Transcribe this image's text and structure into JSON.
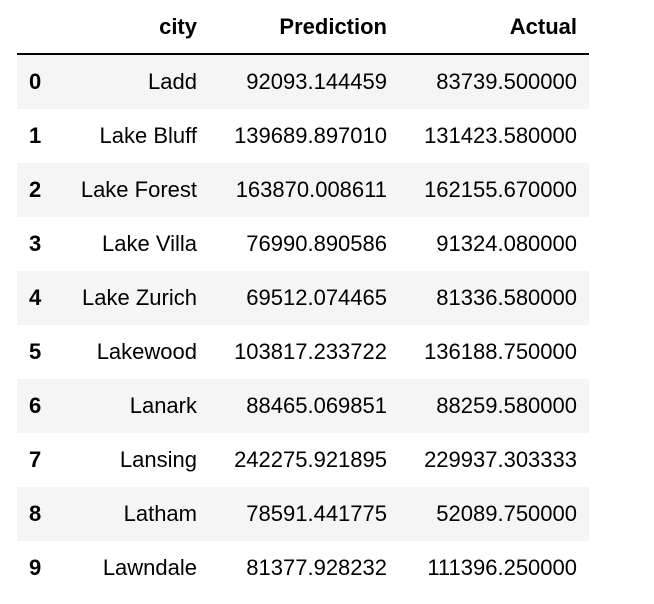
{
  "table": {
    "columns": [
      "",
      "city",
      "Prediction",
      "Actual"
    ],
    "rows": [
      {
        "index": "0",
        "city": "Ladd",
        "prediction": "92093.144459",
        "actual": "83739.500000"
      },
      {
        "index": "1",
        "city": "Lake Bluff",
        "prediction": "139689.897010",
        "actual": "131423.580000"
      },
      {
        "index": "2",
        "city": "Lake Forest",
        "prediction": "163870.008611",
        "actual": "162155.670000"
      },
      {
        "index": "3",
        "city": "Lake Villa",
        "prediction": "76990.890586",
        "actual": "91324.080000"
      },
      {
        "index": "4",
        "city": "Lake Zurich",
        "prediction": "69512.074465",
        "actual": "81336.580000"
      },
      {
        "index": "5",
        "city": "Lakewood",
        "prediction": "103817.233722",
        "actual": "136188.750000"
      },
      {
        "index": "6",
        "city": "Lanark",
        "prediction": "88465.069851",
        "actual": "88259.580000"
      },
      {
        "index": "7",
        "city": "Lansing",
        "prediction": "242275.921895",
        "actual": "229937.303333"
      },
      {
        "index": "8",
        "city": "Latham",
        "prediction": "78591.441775",
        "actual": "52089.750000"
      },
      {
        "index": "9",
        "city": "Lawndale",
        "prediction": "81377.928232",
        "actual": "111396.250000"
      }
    ]
  }
}
